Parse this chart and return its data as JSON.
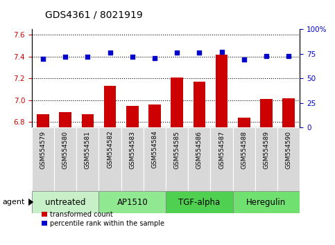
{
  "title": "GDS4361 / 8021919",
  "samples": [
    "GSM554579",
    "GSM554580",
    "GSM554581",
    "GSM554582",
    "GSM554583",
    "GSM554584",
    "GSM554585",
    "GSM554586",
    "GSM554587",
    "GSM554588",
    "GSM554589",
    "GSM554590"
  ],
  "bar_values": [
    6.87,
    6.89,
    6.87,
    7.13,
    6.95,
    6.96,
    7.21,
    7.17,
    7.42,
    6.84,
    7.01,
    7.02
  ],
  "dot_values": [
    70,
    72,
    72,
    76,
    72,
    71,
    76,
    76,
    77,
    69,
    73,
    73
  ],
  "ylim_left": [
    6.75,
    7.65
  ],
  "ylim_right": [
    0,
    100
  ],
  "yticks_left": [
    6.8,
    7.0,
    7.2,
    7.4,
    7.6
  ],
  "yticks_right": [
    0,
    25,
    50,
    75,
    100
  ],
  "ytick_labels_right": [
    "0",
    "25",
    "50",
    "75",
    "100%"
  ],
  "groups": [
    {
      "label": "untreated",
      "start": 0,
      "end": 3,
      "color": "#c8f0c8"
    },
    {
      "label": "AP1510",
      "start": 3,
      "end": 6,
      "color": "#90e890"
    },
    {
      "label": "TGF-alpha",
      "start": 6,
      "end": 9,
      "color": "#50d050"
    },
    {
      "label": "Heregulin",
      "start": 9,
      "end": 12,
      "color": "#70e070"
    }
  ],
  "bar_color": "#cc0000",
  "dot_color": "#0000cc",
  "bar_baseline": 6.75,
  "legend_bar_label": "transformed count",
  "legend_dot_label": "percentile rank within the sample",
  "agent_label": "agent",
  "title_fontsize": 10,
  "tick_fontsize": 7.5,
  "group_fontsize": 8.5,
  "label_fontsize": 6.5
}
